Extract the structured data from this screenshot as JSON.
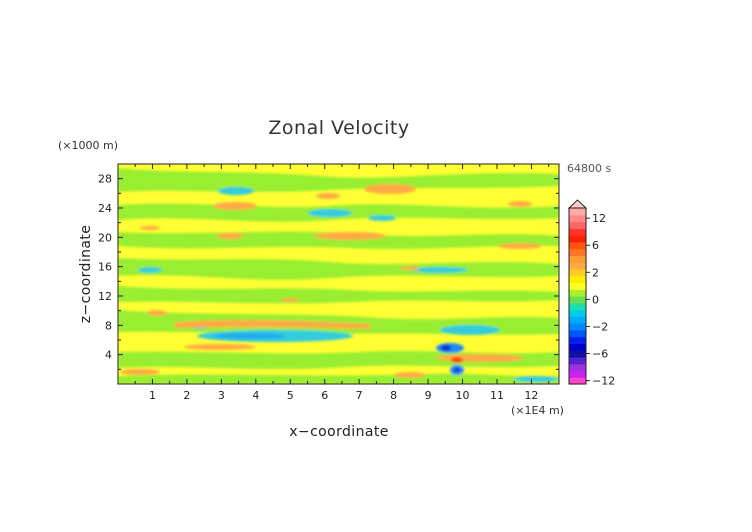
{
  "chart_data": {
    "type": "heatmap",
    "title": "Zonal Velocity",
    "xlabel": "x−coordinate",
    "ylabel": "z−coordinate",
    "x_unit": "(×1E4 m)",
    "y_unit": "(×1000 m)",
    "time_label": "64800 s",
    "xlim": [
      0,
      12.8
    ],
    "ylim": [
      0,
      30
    ],
    "x_ticks": [
      "1",
      "2",
      "3",
      "4",
      "5",
      "6",
      "7",
      "8",
      "9",
      "10",
      "11",
      "12"
    ],
    "y_ticks": [
      "4",
      "8",
      "12",
      "16",
      "20",
      "24",
      "28"
    ],
    "colorbar": {
      "tick_labels": [
        "12",
        "6",
        "2",
        "0",
        "−2",
        "−6",
        "−12"
      ],
      "tick_values": [
        12,
        6,
        2,
        0,
        -2,
        -6,
        -12
      ],
      "levels": [
        -14,
        -12,
        -10,
        -8,
        -7,
        -6,
        -5,
        -4,
        -3,
        -2,
        -1.5,
        -1,
        -0.5,
        0,
        0.5,
        1,
        1.5,
        2,
        3,
        4,
        5,
        6,
        7,
        8,
        10,
        12,
        14
      ],
      "colors": [
        "#ff44cc",
        "#cc22ee",
        "#9933dd",
        "#5522cc",
        "#1111aa",
        "#0000cc",
        "#0022ee",
        "#0055ff",
        "#0088ff",
        "#00aaff",
        "#00ccee",
        "#22ddaa",
        "#66dd55",
        "#aaee33",
        "#ffff22",
        "#ffee00",
        "#ffcc22",
        "#ffaa44",
        "#ff9933",
        "#ff7722",
        "#ff5511",
        "#ff2200",
        "#ff3333",
        "#ff6666",
        "#ff8888",
        "#ffaaaa"
      ]
    },
    "features": [
      {
        "x": 4.6,
        "z": 5.8,
        "value": -2.5
      },
      {
        "x": 4.3,
        "z": 7.3,
        "value": 2.5
      },
      {
        "x": 9.5,
        "z": 5.1,
        "value": -6
      },
      {
        "x": 9.7,
        "z": 3.0,
        "value": 5
      },
      {
        "x": 9.7,
        "z": 1.9,
        "value": -4
      },
      {
        "x": 5.9,
        "z": 23.4,
        "value": -2
      },
      {
        "x": 6.9,
        "z": 20.3,
        "value": 2
      },
      {
        "x": 7.7,
        "z": 25.5,
        "value": 2
      },
      {
        "x": 3.4,
        "z": 26.4,
        "value": -2
      },
      {
        "x": 3.3,
        "z": 23.8,
        "value": 2
      },
      {
        "x": 11.4,
        "z": 4.2,
        "value": 2.5
      },
      {
        "x": 11.9,
        "z": 1.4,
        "value": -2
      }
    ]
  }
}
